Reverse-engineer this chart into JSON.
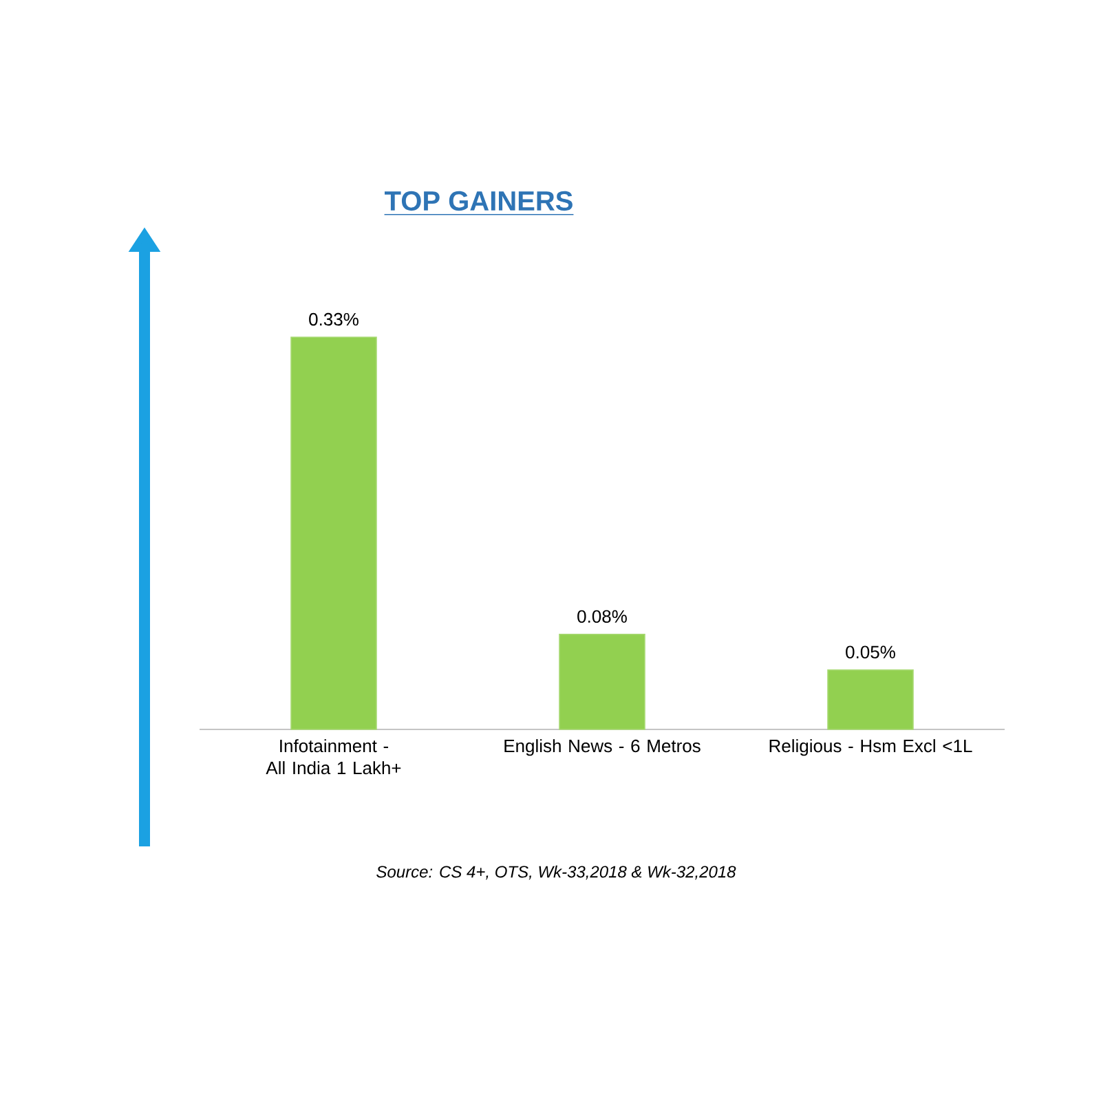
{
  "chart_data": {
    "type": "bar",
    "title": "TOP GAINERS",
    "categories": [
      "Infotainment - All India 1 Lakh+",
      "English News - 6 Metros",
      "Religious - Hsm Excl <1L"
    ],
    "values": [
      0.33,
      0.08,
      0.05
    ],
    "value_labels": [
      "0.33%",
      "0.08%",
      "0.05%"
    ],
    "color": "#92d050",
    "annotations": [
      "Source: CS 4+,  OTS, Wk-33,2018 & Wk-32,2018"
    ]
  }
}
